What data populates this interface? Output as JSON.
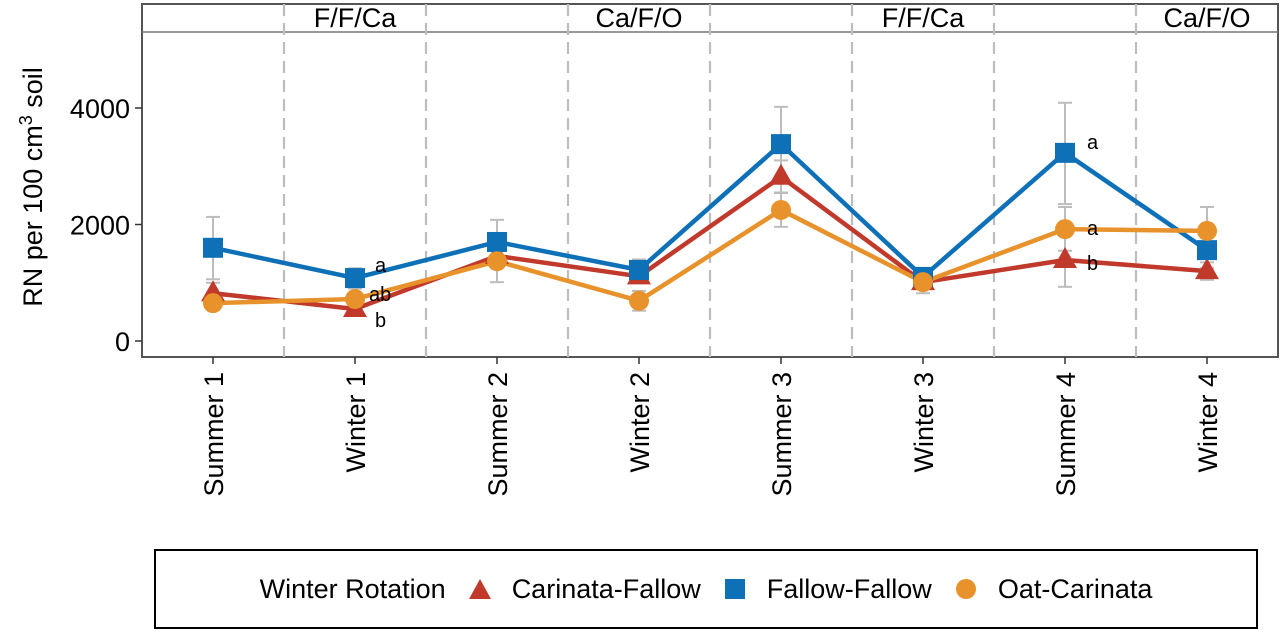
{
  "chart_data": {
    "type": "line",
    "title": "",
    "xlabel": "",
    "ylabel": "RN per 100 cm",
    "ylabel_superscript": "3",
    "ylabel_suffix": " soil",
    "ylim": [
      -280,
      5300
    ],
    "yticks": [
      0,
      2000,
      4000
    ],
    "ytick_labels": [
      "0",
      "2000",
      "4000"
    ],
    "grid": false,
    "categories": [
      "Summer 1",
      "Winter 1",
      "Summer 2",
      "Winter 2",
      "Summer 3",
      "Winter 3",
      "Summer 4",
      "Winter 4"
    ],
    "strip_labels": [
      {
        "label": "F/F/Ca",
        "span": [
          "Winter 1",
          "Summer 2"
        ]
      },
      {
        "label": "Ca/F/O",
        "span": [
          "Summer 2",
          "Winter 2"
        ]
      },
      {
        "label": "F/F/Ca",
        "span": [
          "Winter 3"
        ]
      },
      {
        "label": "Ca/F/O",
        "span": [
          "Winter 4"
        ]
      }
    ],
    "strip_text": [
      "F/F/Ca",
      "Ca/F/O",
      "F/F/Ca",
      "Ca/F/O"
    ],
    "series": [
      {
        "name": "Carinata-Fallow",
        "color": "#c0392b",
        "marker": "triangle",
        "values": [
          820,
          550,
          1460,
          1110,
          2820,
          1010,
          1390,
          1200
        ],
        "error": [
          [
            650,
            1000
          ],
          [
            480,
            620
          ],
          [
            1300,
            1620
          ],
          [
            1000,
            1220
          ],
          [
            2550,
            3100
          ],
          [
            900,
            1120
          ],
          [
            930,
            1850
          ],
          [
            1050,
            1350
          ]
        ]
      },
      {
        "name": "Fallow-Fallow",
        "color": "#0e71b8",
        "marker": "square",
        "values": [
          1600,
          1080,
          1700,
          1220,
          3380,
          1100,
          3230,
          1560
        ],
        "error": [
          [
            1060,
            2130
          ],
          [
            900,
            1250
          ],
          [
            1320,
            2080
          ],
          [
            1050,
            1400
          ],
          [
            2750,
            4020
          ],
          [
            950,
            1250
          ],
          [
            2350,
            4090
          ],
          [
            1250,
            1850
          ]
        ]
      },
      {
        "name": "Oat-Carinata",
        "color": "#e8922b",
        "marker": "circle",
        "values": [
          650,
          720,
          1370,
          690,
          2250,
          1010,
          1920,
          1890
        ],
        "error": [
          [
            540,
            760
          ],
          [
            620,
            820
          ],
          [
            1010,
            1700
          ],
          [
            520,
            860
          ],
          [
            1960,
            2540
          ],
          [
            820,
            1200
          ],
          [
            1550,
            2300
          ],
          [
            1500,
            2300
          ]
        ]
      }
    ],
    "annotations": [
      {
        "category": "Winter 1",
        "series": "Fallow-Fallow",
        "text": "a"
      },
      {
        "category": "Winter 1",
        "series": "Oat-Carinata",
        "text": "ab"
      },
      {
        "category": "Winter 1",
        "series": "Carinata-Fallow",
        "text": "b"
      },
      {
        "category": "Summer 4",
        "series": "Fallow-Fallow",
        "text": "a"
      },
      {
        "category": "Summer 4",
        "series": "Oat-Carinata",
        "text": "a"
      },
      {
        "category": "Summer 4",
        "series": "Carinata-Fallow",
        "text": "b"
      }
    ],
    "legend": {
      "title": "Winter Rotation",
      "position": "bottom",
      "entries": [
        "Carinata-Fallow",
        "Fallow-Fallow",
        "Oat-Carinata"
      ]
    },
    "error_bar_color": "#bdbdbd",
    "divider_color": "#bdbdbd"
  }
}
